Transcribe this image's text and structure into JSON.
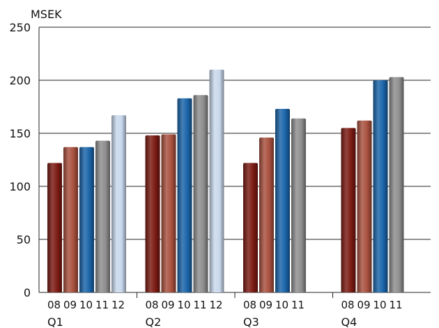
{
  "chart_data": {
    "type": "bar",
    "ylabel": "MSEK",
    "ylim": [
      0,
      250
    ],
    "yticks": [
      0,
      50,
      100,
      150,
      200,
      250
    ],
    "grid": true,
    "colors": {
      "08": "#7a1a12",
      "09": "#a8503e",
      "10": "#1a64a8",
      "11": "#8e8e8e",
      "12": "#c8d8ec"
    },
    "groups": [
      {
        "quarter": "Q1",
        "bars": [
          {
            "year": "08",
            "value": 122
          },
          {
            "year": "09",
            "value": 137
          },
          {
            "year": "10",
            "value": 137
          },
          {
            "year": "11",
            "value": 143
          },
          {
            "year": "12",
            "value": 167
          }
        ]
      },
      {
        "quarter": "Q2",
        "bars": [
          {
            "year": "08",
            "value": 148
          },
          {
            "year": "09",
            "value": 149
          },
          {
            "year": "10",
            "value": 183
          },
          {
            "year": "11",
            "value": 186
          },
          {
            "year": "12",
            "value": 210
          }
        ]
      },
      {
        "quarter": "Q3",
        "bars": [
          {
            "year": "08",
            "value": 122
          },
          {
            "year": "09",
            "value": 146
          },
          {
            "year": "10",
            "value": 173
          },
          {
            "year": "11",
            "value": 164
          }
        ]
      },
      {
        "quarter": "Q4",
        "bars": [
          {
            "year": "08",
            "value": 155
          },
          {
            "year": "09",
            "value": 162
          },
          {
            "year": "10",
            "value": 200
          },
          {
            "year": "11",
            "value": 203
          }
        ]
      }
    ]
  }
}
